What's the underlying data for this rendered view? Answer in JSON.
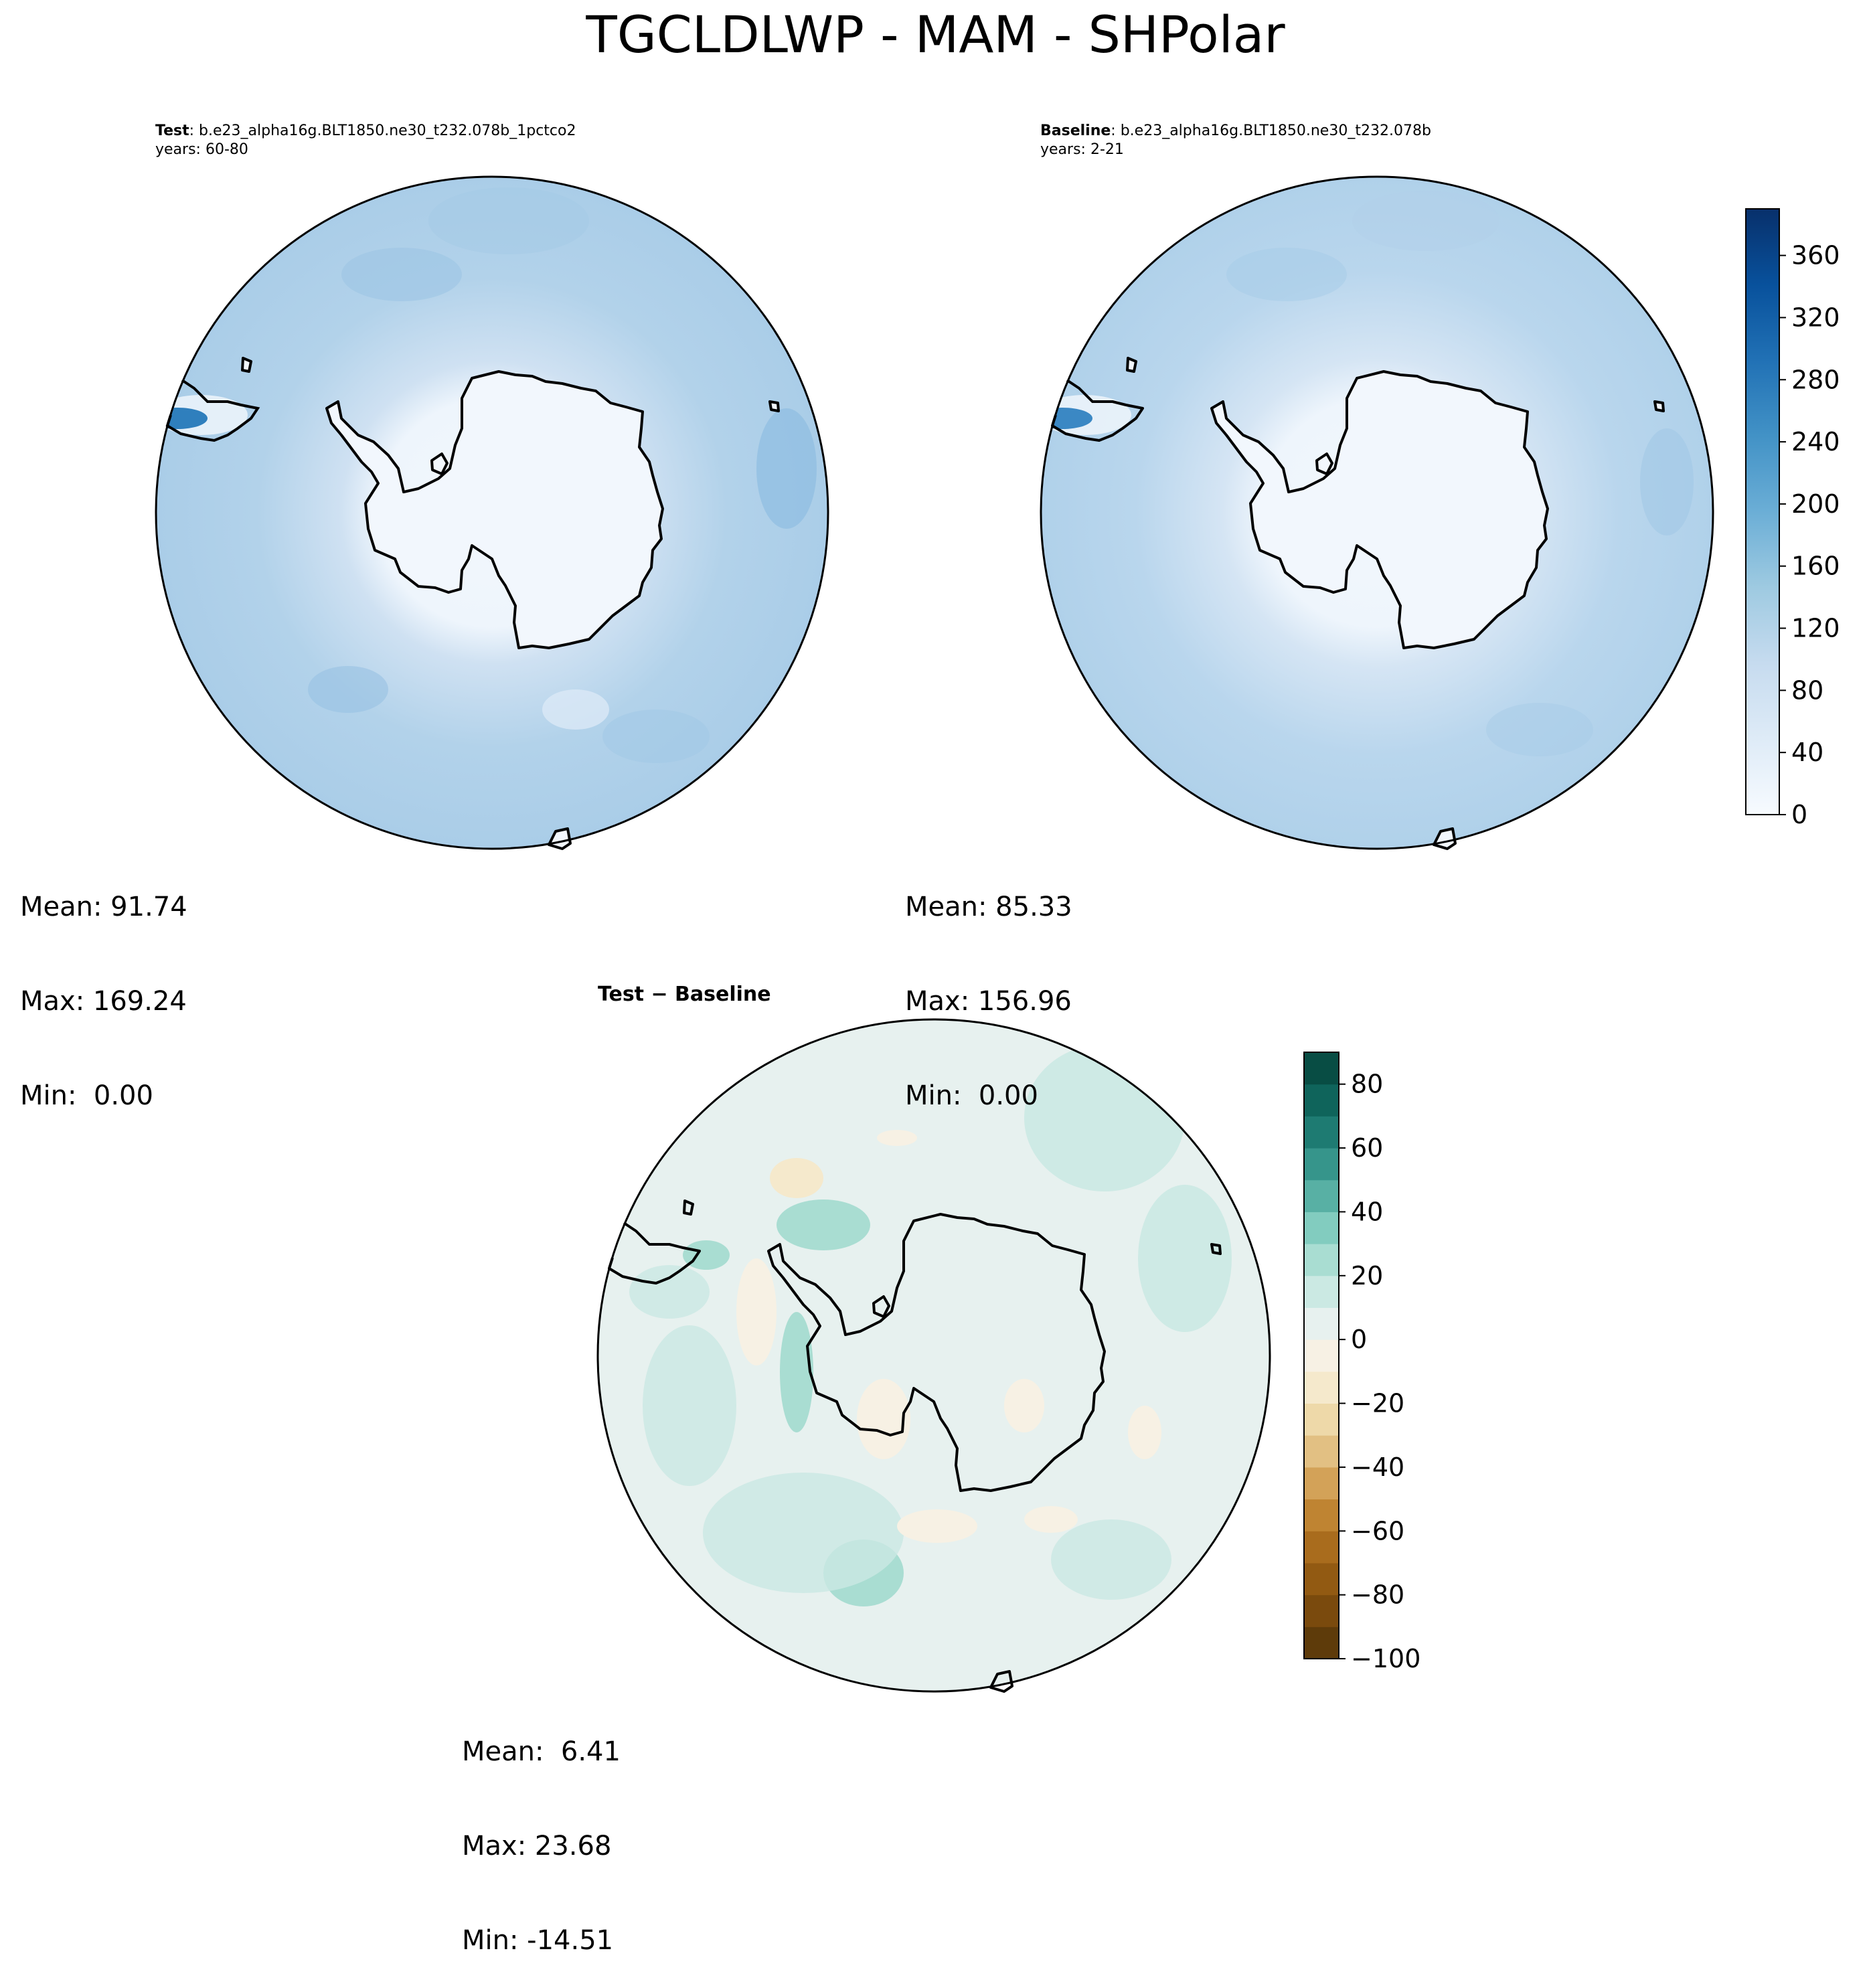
{
  "figure": {
    "title": "TGCLDLWP - MAM - SHPolar"
  },
  "chart_data": [
    {
      "type": "heatmap",
      "panel": "test",
      "projection": "south-polar-stereographic",
      "label_bold": "Test",
      "label_case": ": b.e23_alpha16g.BLT1850.ne30_t232.078b_1pctco2",
      "years": "years: 60-80",
      "stats": {
        "mean": "Mean: 91.74",
        "max": "Max: 169.24",
        "min": "Min:  0.00"
      },
      "colormap": "Blues",
      "levels": [
        0,
        20,
        40,
        60,
        80,
        100,
        120,
        140,
        160,
        180,
        200,
        220,
        240,
        260,
        280,
        300,
        320,
        340,
        360,
        380,
        390
      ]
    },
    {
      "type": "heatmap",
      "panel": "baseline",
      "projection": "south-polar-stereographic",
      "label_bold": "Baseline",
      "label_case": ": b.e23_alpha16g.BLT1850.ne30_t232.078b",
      "years": "years: 2-21",
      "stats": {
        "mean": "Mean: 85.33",
        "max": "Max: 156.96",
        "min": "Min:  0.00"
      },
      "colormap": "Blues",
      "colorbar": {
        "range": [
          0,
          390
        ],
        "ticks": [
          0,
          40,
          80,
          120,
          160,
          200,
          240,
          280,
          320,
          360
        ],
        "tick_labels": [
          "0",
          "40",
          "80",
          "120",
          "160",
          "200",
          "240",
          "280",
          "320",
          "360"
        ]
      }
    },
    {
      "type": "heatmap",
      "panel": "difference",
      "projection": "south-polar-stereographic",
      "title": "Test − Baseline",
      "stats": {
        "mean": "Mean:  6.41",
        "max": "Max: 23.68",
        "min": "Min: -14.51"
      },
      "colormap": "BrBG",
      "colorbar": {
        "range": [
          -100,
          90
        ],
        "levels": [
          -100,
          -90,
          -80,
          -70,
          -60,
          -50,
          -40,
          -30,
          -20,
          -10,
          0,
          10,
          20,
          30,
          40,
          50,
          60,
          70,
          80,
          90
        ],
        "colors": [
          "#5e3b0a",
          "#7a4a0d",
          "#925a12",
          "#a96c1d",
          "#bf8432",
          "#d3a258",
          "#e2c083",
          "#eed9a9",
          "#f5e9cc",
          "#f7f1e4",
          "#e7f1ef",
          "#cbe9e3",
          "#a9ddd2",
          "#82ccbf",
          "#58b0a4",
          "#36958b",
          "#1e7b72",
          "#0f645b",
          "#084d44"
        ],
        "ticks": [
          -100,
          -80,
          -60,
          -40,
          -20,
          0,
          20,
          40,
          60,
          80
        ],
        "tick_labels": [
          "−100",
          "−80",
          "−60",
          "−40",
          "−20",
          "0",
          "20",
          "40",
          "60",
          "80"
        ]
      }
    }
  ]
}
